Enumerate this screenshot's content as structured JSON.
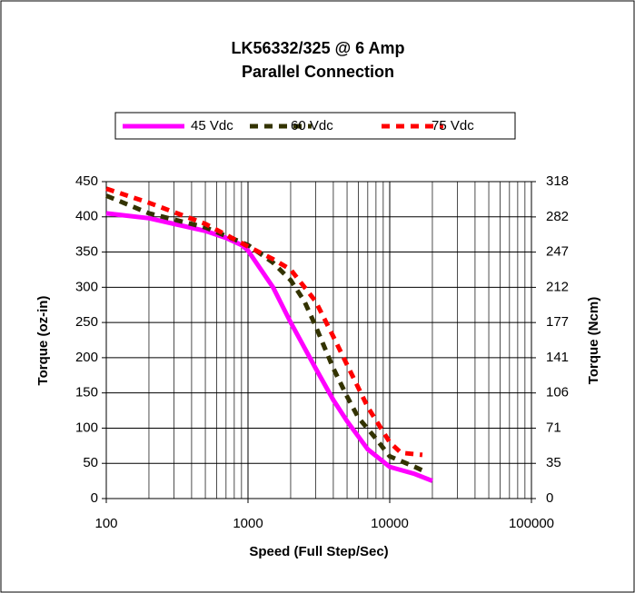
{
  "chart_data": {
    "type": "line",
    "title": "LK56332/325 @ 6 Amp",
    "subtitle": "Parallel Connection",
    "xlabel": "Speed (Full Step/Sec)",
    "ylabel": "Torque (oz-in)",
    "y2label": "Torque (Ncm)",
    "xscale": "log",
    "xlim": [
      100,
      100000
    ],
    "xticks": [
      100,
      1000,
      10000,
      100000
    ],
    "ylim": [
      0,
      450
    ],
    "yticks": [
      0,
      50,
      100,
      150,
      200,
      250,
      300,
      350,
      400,
      450
    ],
    "y2lim": [
      0,
      317.8
    ],
    "y2ticks": [
      0,
      {
        "value": 35.3,
        "label": "35"
      },
      {
        "value": 70.6,
        "label": "71"
      },
      {
        "value": 105.9,
        "label": "106"
      },
      {
        "value": 141.2,
        "label": "141"
      },
      {
        "value": 176.5,
        "label": "177"
      },
      {
        "value": 211.8,
        "label": "212"
      },
      {
        "value": 247.1,
        "label": "247"
      },
      {
        "value": 282.4,
        "label": "282"
      },
      {
        "value": 317.8,
        "label": "318"
      }
    ],
    "grid": true,
    "legend": "top",
    "series": [
      {
        "name": "45 Vdc",
        "color": "#ff00ff",
        "style": "solid",
        "x": [
          100,
          200,
          300,
          500,
          700,
          900,
          1000,
          1500,
          2000,
          3000,
          4000,
          5000,
          7000,
          10000,
          15000,
          20000
        ],
        "values": [
          405,
          398,
          390,
          380,
          370,
          360,
          352,
          300,
          250,
          185,
          140,
          110,
          70,
          45,
          35,
          25
        ]
      },
      {
        "name": "60 Vdc",
        "color": "#333300",
        "style": "dashed",
        "x": [
          100,
          200,
          500,
          1000,
          1500,
          2000,
          2500,
          3000,
          4000,
          5000,
          6000,
          8000,
          10000,
          15000,
          17000
        ],
        "values": [
          430,
          405,
          385,
          360,
          335,
          310,
          280,
          245,
          185,
          145,
          115,
          85,
          60,
          45,
          40
        ]
      },
      {
        "name": "75 Vdc",
        "color": "#ff0000",
        "style": "dashed",
        "x": [
          100,
          200,
          500,
          1000,
          1500,
          2000,
          3000,
          4000,
          5000,
          7000,
          10000,
          12000,
          17000
        ],
        "values": [
          440,
          420,
          390,
          358,
          340,
          325,
          280,
          230,
          190,
          130,
          80,
          65,
          62
        ]
      }
    ]
  }
}
